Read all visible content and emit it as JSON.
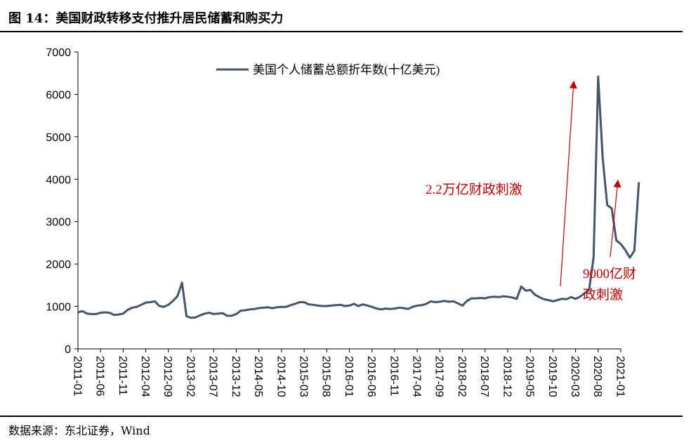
{
  "figure": {
    "title": "图 14：美国财政转移支付推升居民储蓄和购买力",
    "source": "数据来源：东北证券，Wind"
  },
  "chart_data": {
    "type": "line",
    "title": "",
    "xlabel": "",
    "ylabel": "",
    "ylim": [
      0,
      7000
    ],
    "yticks": [
      0,
      1000,
      2000,
      3000,
      4000,
      5000,
      6000,
      7000
    ],
    "xticks": [
      "2011-01",
      "2011-06",
      "2011-11",
      "2012-04",
      "2012-09",
      "2013-02",
      "2013-07",
      "2013-12",
      "2014-05",
      "2014-10",
      "2015-03",
      "2015-08",
      "2016-01",
      "2016-06",
      "2016-11",
      "2017-04",
      "2017-09",
      "2018-02",
      "2018-07",
      "2018-12",
      "2019-05",
      "2019-10",
      "2020-03",
      "2020-08",
      "2021-01"
    ],
    "legend_position": "top-center",
    "grid": false,
    "line_color": "#44546a",
    "annotation_color": "#c00000",
    "start_month": "2011-01",
    "series": [
      {
        "name": "美国个人储蓄总额折年数(十亿美元)",
        "values": [
          860,
          890,
          830,
          820,
          820,
          850,
          860,
          850,
          800,
          810,
          830,
          920,
          970,
          990,
          1040,
          1090,
          1100,
          1120,
          1010,
          990,
          1040,
          1130,
          1240,
          1560,
          770,
          730,
          740,
          790,
          830,
          850,
          820,
          830,
          840,
          780,
          780,
          820,
          900,
          910,
          930,
          940,
          960,
          970,
          980,
          960,
          980,
          990,
          990,
          1030,
          1060,
          1100,
          1100,
          1050,
          1040,
          1020,
          1010,
          1010,
          1020,
          1030,
          1040,
          1010,
          1020,
          1060,
          1010,
          1050,
          1020,
          990,
          950,
          930,
          950,
          940,
          950,
          970,
          960,
          940,
          990,
          1020,
          1030,
          1060,
          1120,
          1100,
          1110,
          1130,
          1110,
          1120,
          1070,
          1020,
          1130,
          1190,
          1190,
          1200,
          1190,
          1220,
          1230,
          1220,
          1240,
          1230,
          1210,
          1180,
          1470,
          1370,
          1390,
          1280,
          1220,
          1170,
          1150,
          1120,
          1150,
          1180,
          1170,
          1220,
          1180,
          1230,
          1310,
          1390,
          2160,
          6420,
          4510,
          3390,
          3310,
          2560,
          2470,
          2330,
          2150,
          2310,
          3930
        ]
      }
    ],
    "annotations": [
      {
        "text": "2.2万亿财政刺激"
      },
      {
        "text_lines": [
          "9000亿财",
          "政刺激"
        ]
      }
    ]
  }
}
